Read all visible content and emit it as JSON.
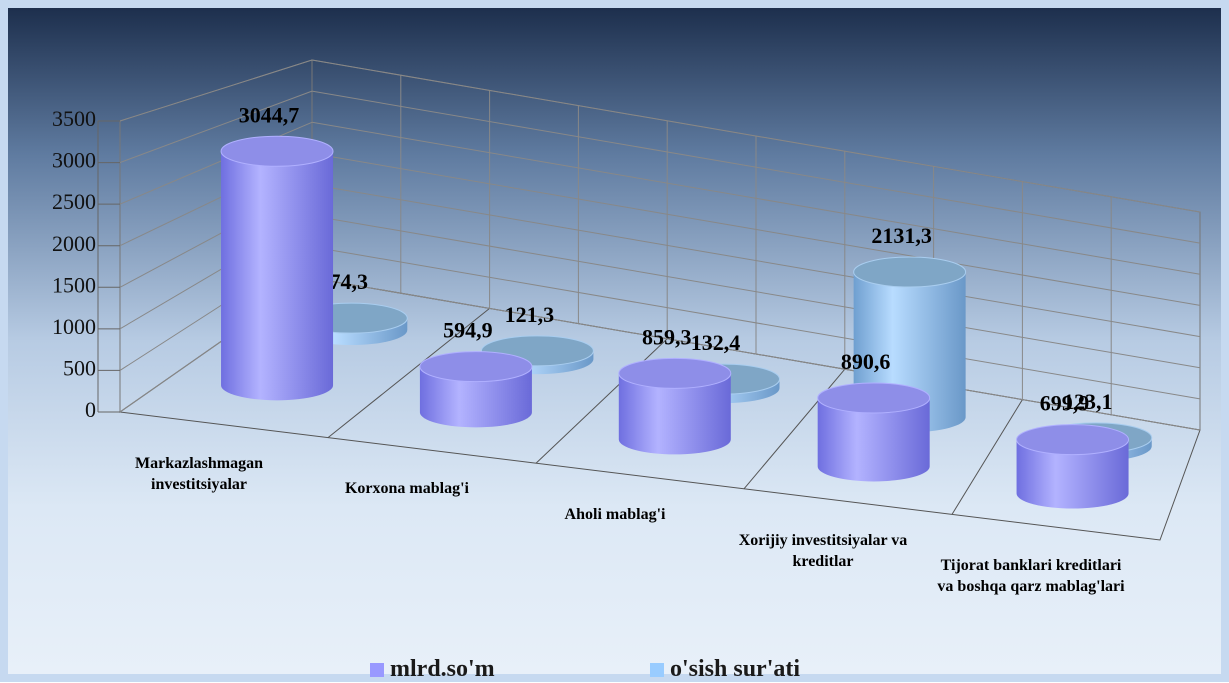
{
  "chart_data": {
    "type": "bar3d",
    "categories": [
      "Markazlashmagan investitsiyalar",
      "Korxona mablag'i",
      "Aholi mablag'i",
      "Xorijiy investitsiyalar va kreditlar",
      "Tijorat banklari kreditlari va boshqa qarz mablag'lari"
    ],
    "series": [
      {
        "name": "mlrd.so'm",
        "color": "#9999ff",
        "values": [
          3044.7,
          594.9,
          859.3,
          890.6,
          699.9
        ],
        "value_labels": [
          "3044,7",
          "594,9",
          "859,3",
          "890,6",
          "699,9"
        ]
      },
      {
        "name": "o'sish sur'ati",
        "color": "#99ccff",
        "values": [
          174.3,
          121.3,
          132.4,
          2131.3,
          123.1
        ],
        "value_labels": [
          "174,3",
          "121,3",
          "132,4",
          "2131,3",
          "123,1"
        ]
      }
    ],
    "ylim": [
      0,
      3500
    ],
    "yticks": [
      0,
      500,
      1000,
      1500,
      2000,
      2500,
      3000,
      3500
    ],
    "grid": true,
    "legend": "bottom"
  }
}
